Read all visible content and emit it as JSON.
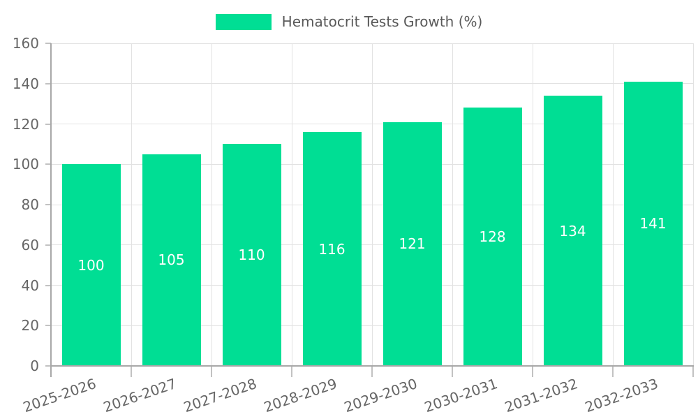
{
  "chart_data": {
    "type": "bar",
    "title": "Hematocrit Tests Growth (%)",
    "legend": [
      "Hematocrit Tests Growth (%)"
    ],
    "legend_position": "top",
    "categories": [
      "2025-2026",
      "2026-2027",
      "2027-2028",
      "2028-2029",
      "2029-2030",
      "2030-2031",
      "2031-2032",
      "2032-2033"
    ],
    "values": [
      100,
      105,
      110,
      116,
      121,
      128,
      134,
      141
    ],
    "xlabel": "",
    "ylabel": "",
    "ylim": [
      0,
      160
    ],
    "yticks": [
      0,
      20,
      40,
      60,
      80,
      100,
      120,
      140,
      160
    ],
    "grid": true,
    "value_labels_inside_bars": true,
    "colors": {
      "bar": "#00de94",
      "bar_value_label": "#ffffff",
      "axis": "#a8a8a8",
      "grid": "#e2e2e2",
      "tick": "#c2c2c2",
      "tick_label": "#666666",
      "legend_label": "#595959"
    }
  }
}
